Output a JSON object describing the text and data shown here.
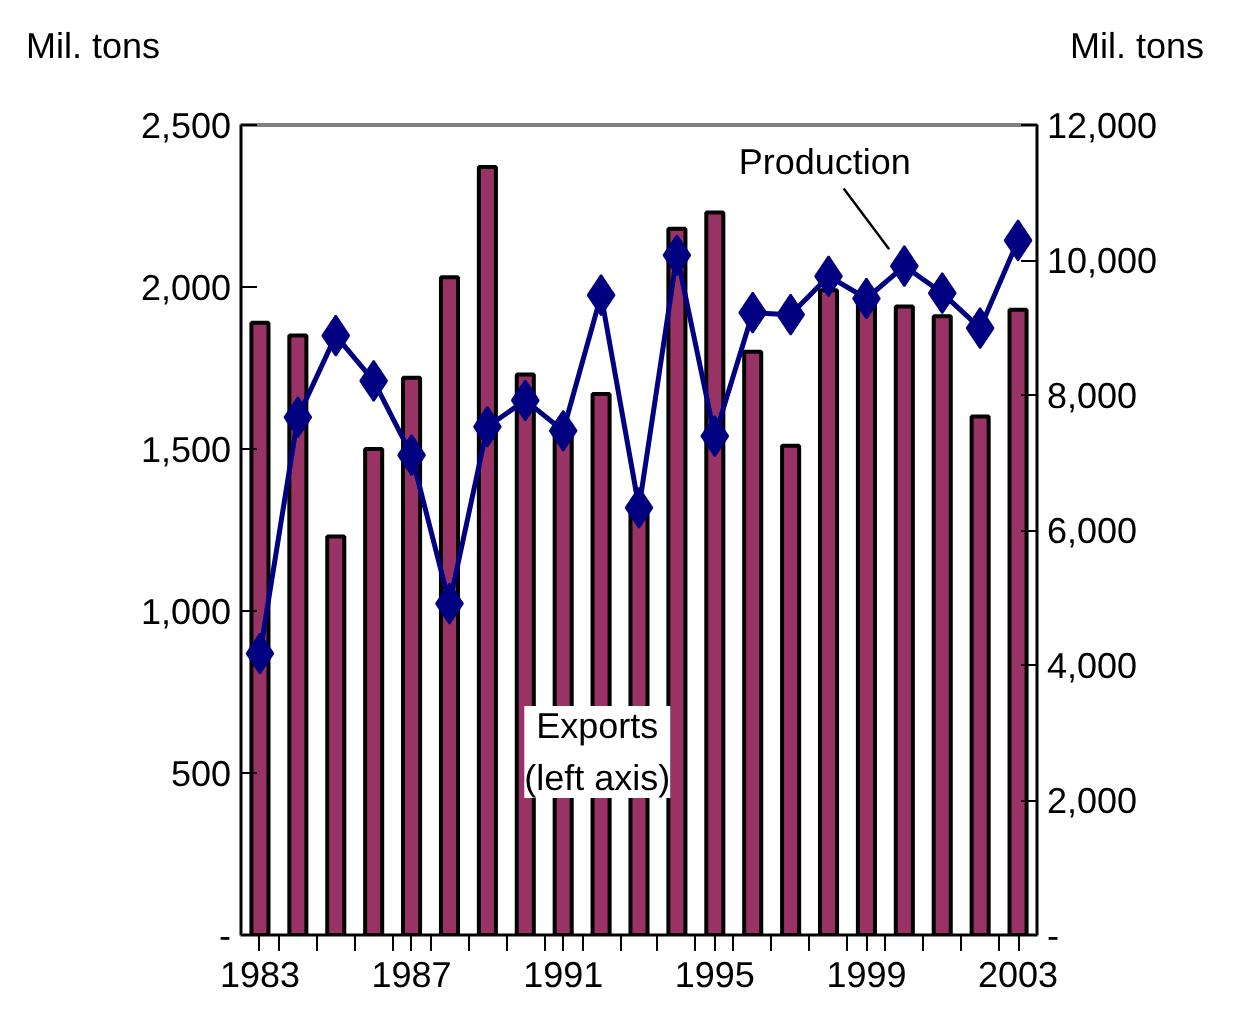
{
  "chart_data": {
    "type": "bar",
    "ylabel": "Mil. tons",
    "y2label": "Mil. tons",
    "x": [
      1983,
      1984,
      1985,
      1986,
      1987,
      1988,
      1989,
      1990,
      1991,
      1992,
      1993,
      1994,
      1995,
      1996,
      1997,
      1998,
      1999,
      2000,
      2001,
      2002,
      2003
    ],
    "series": [
      {
        "name": "Exports\n(left axis)",
        "color": "#993366",
        "values": [
          1890,
          1850,
          1230,
          1500,
          1720,
          2030,
          2370,
          1730,
          1560,
          1670,
          1320,
          2180,
          2230,
          1800,
          1510,
          1990,
          1960,
          1940,
          1910,
          1600,
          1930
        ]
      },
      {
        "name": "Production",
        "type": "line",
        "axis": "y2",
        "color": "#000080",
        "marker": "diamond",
        "values": [
          4170,
          7670,
          8880,
          8210,
          7110,
          4910,
          7530,
          7920,
          7470,
          9480,
          6330,
          10070,
          7390,
          9220,
          9190,
          9760,
          9430,
          9910,
          9510,
          8990,
          10290
        ]
      }
    ],
    "xlim": [
      1982.5,
      2003.5
    ],
    "xticks": [
      {
        "value": 1983,
        "label": "1983"
      },
      {
        "value": 1987,
        "label": "1987"
      },
      {
        "value": 1991,
        "label": "1991"
      },
      {
        "value": 1995,
        "label": "1995"
      },
      {
        "value": 1999,
        "label": "1999"
      },
      {
        "value": 2003,
        "label": "2003"
      },
      {
        "value": 1983.5,
        "label": null
      },
      {
        "value": 1984.5,
        "label": null
      },
      {
        "value": 1985.5,
        "label": null
      },
      {
        "value": 1986.5,
        "label": null
      },
      {
        "value": 1987.5,
        "label": null
      },
      {
        "value": 1988.5,
        "label": null
      },
      {
        "value": 1989.5,
        "label": null
      },
      {
        "value": 1990.5,
        "label": null
      },
      {
        "value": 1991.5,
        "label": null
      },
      {
        "value": 1992.5,
        "label": null
      },
      {
        "value": 1993.5,
        "label": null
      },
      {
        "value": 1994.5,
        "label": null
      },
      {
        "value": 1995.5,
        "label": null
      },
      {
        "value": 1996.5,
        "label": null
      },
      {
        "value": 1997.5,
        "label": null
      },
      {
        "value": 1998.5,
        "label": null
      },
      {
        "value": 1999.5,
        "label": null
      },
      {
        "value": 2000.5,
        "label": null
      },
      {
        "value": 2001.5,
        "label": null
      },
      {
        "value": 2002.5,
        "label": null
      }
    ],
    "ylim": [
      0,
      2500
    ],
    "yticks": [
      {
        "value": 0,
        "label": "-"
      },
      {
        "value": 500,
        "label": "500"
      },
      {
        "value": 1000,
        "label": "1,000"
      },
      {
        "value": 1500,
        "label": "1,500"
      },
      {
        "value": 2000,
        "label": "2,000"
      },
      {
        "value": 2500,
        "label": "2,500"
      }
    ],
    "y2lim": [
      0,
      12000
    ],
    "y2ticks": [
      {
        "value": 0,
        "label": "-"
      },
      {
        "value": 2000,
        "label": "2,000"
      },
      {
        "value": 4000,
        "label": "4,000"
      },
      {
        "value": 6000,
        "label": "6,000"
      },
      {
        "value": 8000,
        "label": "8,000"
      },
      {
        "value": 10000,
        "label": "10,000"
      },
      {
        "value": 12000,
        "label": "12,000"
      }
    ],
    "grid": false
  }
}
